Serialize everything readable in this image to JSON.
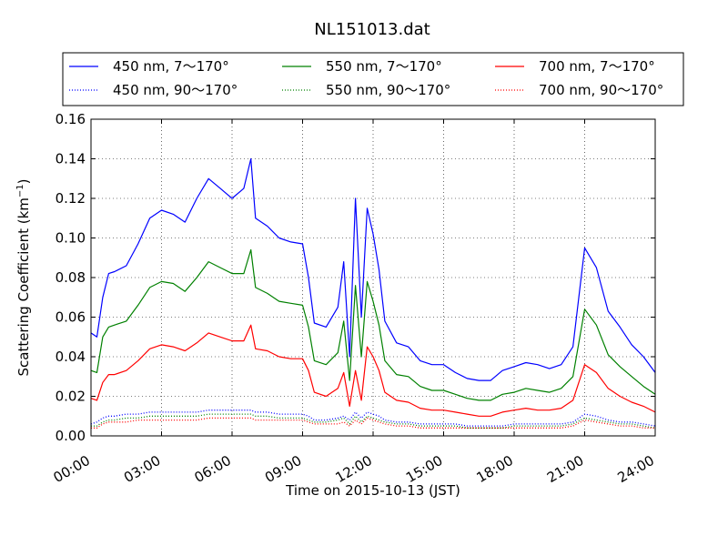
{
  "chart_data": {
    "type": "line",
    "title": "NL151013.dat",
    "xlabel": "Time on 2015-10-13 (JST)",
    "ylabel_main": "Scattering Coefficient (km",
    "ylabel_sup": "−1",
    "ylabel_end": ")",
    "xlim": [
      0,
      24
    ],
    "ylim": [
      0,
      0.16
    ],
    "grid": true,
    "legend_position": "top, outside plot, 3 columns",
    "x_ticks": [
      {
        "value": 0,
        "label": "00:00"
      },
      {
        "value": 3,
        "label": "03:00"
      },
      {
        "value": 6,
        "label": "06:00"
      },
      {
        "value": 9,
        "label": "09:00"
      },
      {
        "value": 12,
        "label": "12:00"
      },
      {
        "value": 15,
        "label": "15:00"
      },
      {
        "value": 18,
        "label": "18:00"
      },
      {
        "value": 21,
        "label": "21:00"
      },
      {
        "value": 24,
        "label": "24:00"
      }
    ],
    "y_ticks": [
      {
        "value": 0,
        "label": "0.00"
      },
      {
        "value": 0.02,
        "label": "0.02"
      },
      {
        "value": 0.04,
        "label": "0.04"
      },
      {
        "value": 0.06,
        "label": "0.06"
      },
      {
        "value": 0.08,
        "label": "0.08"
      },
      {
        "value": 0.1,
        "label": "0.10"
      },
      {
        "value": 0.12,
        "label": "0.12"
      },
      {
        "value": 0.14,
        "label": "0.14"
      },
      {
        "value": 0.16,
        "label": "0.16"
      }
    ],
    "x": [
      0,
      0.25,
      0.5,
      0.75,
      1,
      1.5,
      2,
      2.5,
      3,
      3.5,
      4,
      4.5,
      5,
      5.5,
      6,
      6.5,
      6.8,
      7,
      7.5,
      8,
      8.5,
      9,
      9.25,
      9.5,
      10,
      10.5,
      10.75,
      11,
      11.25,
      11.5,
      11.75,
      12,
      12.25,
      12.5,
      13,
      13.5,
      14,
      14.5,
      15,
      15.5,
      16,
      16.5,
      17,
      17.5,
      18,
      18.5,
      19,
      19.5,
      20,
      20.5,
      21,
      21.5,
      22,
      22.5,
      23,
      23.5,
      24
    ],
    "series": [
      {
        "name": "450 nm, 7～170°",
        "color": "#0000ff",
        "style": "solid",
        "values": [
          0.052,
          0.05,
          0.07,
          0.082,
          0.083,
          0.086,
          0.097,
          0.11,
          0.114,
          0.112,
          0.108,
          0.12,
          0.13,
          0.125,
          0.12,
          0.125,
          0.14,
          0.11,
          0.106,
          0.1,
          0.098,
          0.097,
          0.08,
          0.057,
          0.055,
          0.065,
          0.088,
          0.04,
          0.12,
          0.06,
          0.115,
          0.102,
          0.084,
          0.058,
          0.047,
          0.045,
          0.038,
          0.036,
          0.036,
          0.032,
          0.029,
          0.028,
          0.028,
          0.033,
          0.035,
          0.037,
          0.036,
          0.034,
          0.036,
          0.045,
          0.095,
          0.085,
          0.063,
          0.055,
          0.046,
          0.04,
          0.032
        ]
      },
      {
        "name": "450 nm, 90～170°",
        "color": "#0000ff",
        "style": "dotted",
        "values": [
          0.006,
          0.007,
          0.009,
          0.01,
          0.01,
          0.011,
          0.011,
          0.012,
          0.012,
          0.012,
          0.012,
          0.012,
          0.013,
          0.013,
          0.013,
          0.013,
          0.013,
          0.012,
          0.012,
          0.011,
          0.011,
          0.011,
          0.01,
          0.008,
          0.008,
          0.009,
          0.01,
          0.008,
          0.012,
          0.009,
          0.012,
          0.011,
          0.01,
          0.008,
          0.007,
          0.007,
          0.006,
          0.006,
          0.006,
          0.006,
          0.005,
          0.005,
          0.005,
          0.005,
          0.006,
          0.006,
          0.006,
          0.006,
          0.006,
          0.007,
          0.011,
          0.01,
          0.008,
          0.007,
          0.007,
          0.006,
          0.005
        ]
      },
      {
        "name": "550 nm, 7～170°",
        "color": "#008000",
        "style": "solid",
        "values": [
          0.033,
          0.032,
          0.05,
          0.055,
          0.056,
          0.058,
          0.066,
          0.075,
          0.078,
          0.077,
          0.073,
          0.08,
          0.088,
          0.085,
          0.082,
          0.082,
          0.094,
          0.075,
          0.072,
          0.068,
          0.067,
          0.066,
          0.055,
          0.038,
          0.036,
          0.042,
          0.058,
          0.028,
          0.076,
          0.04,
          0.078,
          0.068,
          0.056,
          0.038,
          0.031,
          0.03,
          0.025,
          0.023,
          0.023,
          0.021,
          0.019,
          0.018,
          0.018,
          0.021,
          0.022,
          0.024,
          0.023,
          0.022,
          0.024,
          0.03,
          0.064,
          0.056,
          0.041,
          0.035,
          0.03,
          0.025,
          0.021
        ]
      },
      {
        "name": "550 nm, 90～170°",
        "color": "#008000",
        "style": "dotted",
        "values": [
          0.005,
          0.005,
          0.007,
          0.008,
          0.008,
          0.009,
          0.009,
          0.01,
          0.01,
          0.01,
          0.01,
          0.01,
          0.011,
          0.011,
          0.011,
          0.011,
          0.011,
          0.01,
          0.01,
          0.009,
          0.009,
          0.009,
          0.008,
          0.007,
          0.007,
          0.008,
          0.009,
          0.006,
          0.01,
          0.007,
          0.01,
          0.009,
          0.008,
          0.007,
          0.006,
          0.006,
          0.005,
          0.005,
          0.005,
          0.005,
          0.004,
          0.004,
          0.004,
          0.004,
          0.005,
          0.005,
          0.005,
          0.005,
          0.005,
          0.006,
          0.009,
          0.008,
          0.007,
          0.006,
          0.006,
          0.005,
          0.004
        ]
      },
      {
        "name": "700 nm, 7～170°",
        "color": "#ff0000",
        "style": "solid",
        "values": [
          0.019,
          0.018,
          0.027,
          0.031,
          0.031,
          0.033,
          0.038,
          0.044,
          0.046,
          0.045,
          0.043,
          0.047,
          0.052,
          0.05,
          0.048,
          0.048,
          0.056,
          0.044,
          0.043,
          0.04,
          0.039,
          0.039,
          0.033,
          0.022,
          0.02,
          0.024,
          0.032,
          0.015,
          0.033,
          0.018,
          0.045,
          0.04,
          0.033,
          0.022,
          0.018,
          0.017,
          0.014,
          0.013,
          0.013,
          0.012,
          0.011,
          0.01,
          0.01,
          0.012,
          0.013,
          0.014,
          0.013,
          0.013,
          0.014,
          0.018,
          0.036,
          0.032,
          0.024,
          0.02,
          0.017,
          0.015,
          0.012
        ]
      },
      {
        "name": "700 nm, 90～170°",
        "color": "#ff0000",
        "style": "dotted",
        "values": [
          0.004,
          0.004,
          0.006,
          0.007,
          0.007,
          0.007,
          0.008,
          0.008,
          0.008,
          0.008,
          0.008,
          0.008,
          0.009,
          0.009,
          0.009,
          0.009,
          0.009,
          0.008,
          0.008,
          0.008,
          0.008,
          0.008,
          0.007,
          0.006,
          0.006,
          0.006,
          0.007,
          0.005,
          0.008,
          0.006,
          0.009,
          0.008,
          0.007,
          0.006,
          0.005,
          0.005,
          0.004,
          0.004,
          0.004,
          0.004,
          0.004,
          0.004,
          0.004,
          0.004,
          0.004,
          0.004,
          0.004,
          0.004,
          0.004,
          0.005,
          0.008,
          0.007,
          0.006,
          0.005,
          0.005,
          0.004,
          0.004
        ]
      }
    ]
  }
}
